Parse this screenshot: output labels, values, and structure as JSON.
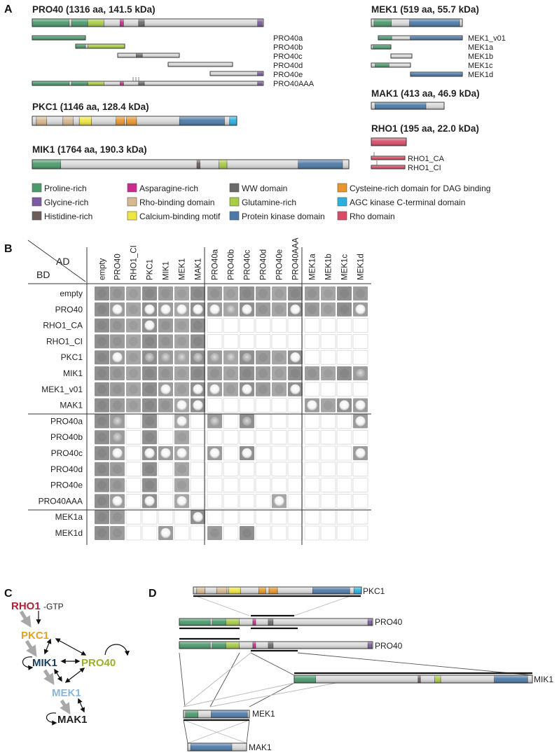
{
  "panels": {
    "a": "A",
    "b": "B",
    "c": "C",
    "d": "D"
  },
  "colors": {
    "proline": "#4a9a6c",
    "glycine": "#7e5aa0",
    "histidine": "#6e5c58",
    "asparagine": "#cc2a8c",
    "rho_binding": "#d8b890",
    "calcium": "#f0e640",
    "ww": "#6a6a6a",
    "glutamine": "#a8cc48",
    "kinase": "#4c7aa8",
    "cysteine": "#e8962c",
    "agc": "#2cb0e0",
    "rho": "#d84c68",
    "node_rho1": "#b0213a",
    "node_pkc1": "#e8a020",
    "node_mik1": "#1b3d5c",
    "node_pro40": "#9ab02a",
    "node_mek1": "#8ab6d8",
    "node_mak1": "#222222"
  },
  "panel_a": {
    "proteins": {
      "pro40": "PRO40 (1316 aa, 141.5 kDa)",
      "mek1": "MEK1 (519 aa, 55.7 kDa)",
      "mak1": "MAK1 (413 aa, 46.9 kDa)",
      "rho1": "RHO1 (195 aa, 22.0 kDa)",
      "pkc1": "PKC1 (1146 aa, 128.4 kDa)",
      "mik1": "MIK1 (1764 aa, 190.3 kDa)"
    },
    "pro40_fragments": [
      "PRO40a",
      "PRO40b",
      "PRO40c",
      "PRO40d",
      "PRO40e",
      "PRO40AAA"
    ],
    "mek1_fragments": [
      "MEK1_v01",
      "MEK1a",
      "MEK1b",
      "MEK1c",
      "MEK1d"
    ],
    "rho1_fragments": [
      "RHO1_CA",
      "RHO1_CI"
    ],
    "legend": [
      {
        "label": "Proline-rich",
        "color": "proline"
      },
      {
        "label": "Asparagine-rich",
        "color": "asparagine"
      },
      {
        "label": "WW domain",
        "color": "ww"
      },
      {
        "label": "Cysteine-rich domain for DAG binding",
        "color": "cysteine"
      },
      {
        "label": "Glycine-rich",
        "color": "glycine"
      },
      {
        "label": "Rho-binding domain",
        "color": "rho_binding"
      },
      {
        "label": "Glutamine-rich",
        "color": "glutamine"
      },
      {
        "label": "AGC kinase C-terminal domain",
        "color": "agc"
      },
      {
        "label": "Histidine-rich",
        "color": "histidine"
      },
      {
        "label": "Calcium-binding motif",
        "color": "calcium"
      },
      {
        "label": "Protein kinase domain",
        "color": "kinase"
      },
      {
        "label": "Rho domain",
        "color": "rho"
      }
    ]
  },
  "panel_b": {
    "ad_label": "AD",
    "bd_label": "BD",
    "columns": [
      "empty",
      "PRO40",
      "RHO1_CI",
      "PKC1",
      "MIK1",
      "MEK1",
      "MAK1",
      "PRO40a",
      "PRO40b",
      "PRO40c",
      "PRO40d",
      "PRO40e",
      "PRO40AAA",
      "MEK1a",
      "MEK1b",
      "MEK1c",
      "MEK1d"
    ],
    "rows": [
      "empty",
      "PRO40",
      "RHO1_CA",
      "RHO1_CI",
      "PKC1",
      "MIK1",
      "MEK1_v01",
      "MAK1",
      "PRO40a",
      "PRO40b",
      "PRO40c",
      "PRO40d",
      "PRO40e",
      "PRO40AAA",
      "MEK1a",
      "MEK1d"
    ],
    "grid_legend": "0 = not tested, 1 = no growth, 2 = weak, 3 = growth",
    "grid": [
      [
        1,
        1,
        1,
        1,
        1,
        1,
        1,
        1,
        1,
        1,
        1,
        1,
        1,
        1,
        1,
        1,
        1
      ],
      [
        1,
        3,
        1,
        3,
        3,
        3,
        3,
        3,
        2,
        3,
        1,
        1,
        3,
        1,
        1,
        1,
        3
      ],
      [
        1,
        1,
        1,
        3,
        1,
        1,
        1,
        0,
        0,
        0,
        0,
        0,
        0,
        0,
        0,
        0,
        0
      ],
      [
        1,
        1,
        1,
        1,
        1,
        1,
        1,
        0,
        0,
        0,
        0,
        0,
        0,
        0,
        0,
        0,
        0
      ],
      [
        1,
        3,
        1,
        2,
        2,
        2,
        2,
        2,
        2,
        2,
        1,
        1,
        3,
        0,
        0,
        0,
        0
      ],
      [
        1,
        1,
        1,
        1,
        1,
        1,
        1,
        1,
        1,
        1,
        1,
        1,
        1,
        1,
        1,
        1,
        2
      ],
      [
        1,
        1,
        1,
        1,
        3,
        1,
        3,
        3,
        1,
        3,
        1,
        1,
        3,
        0,
        0,
        0,
        0
      ],
      [
        1,
        1,
        1,
        1,
        1,
        3,
        3,
        0,
        0,
        0,
        0,
        0,
        0,
        3,
        1,
        3,
        3
      ],
      [
        1,
        2,
        0,
        1,
        0,
        3,
        0,
        2,
        0,
        2,
        0,
        0,
        0,
        0,
        0,
        0,
        3
      ],
      [
        1,
        2,
        0,
        1,
        0,
        1,
        0,
        0,
        0,
        0,
        0,
        0,
        0,
        0,
        0,
        0,
        0
      ],
      [
        1,
        3,
        0,
        3,
        3,
        3,
        0,
        3,
        0,
        3,
        0,
        0,
        0,
        0,
        0,
        0,
        3
      ],
      [
        1,
        1,
        0,
        1,
        0,
        1,
        0,
        0,
        0,
        0,
        0,
        0,
        0,
        0,
        0,
        0,
        0
      ],
      [
        1,
        1,
        0,
        1,
        0,
        1,
        0,
        0,
        0,
        0,
        0,
        0,
        0,
        0,
        0,
        0,
        0
      ],
      [
        1,
        3,
        0,
        3,
        0,
        3,
        0,
        0,
        0,
        0,
        0,
        3,
        0,
        0,
        0,
        0,
        0
      ],
      [
        1,
        1,
        0,
        0,
        0,
        0,
        3,
        0,
        0,
        0,
        0,
        0,
        0,
        0,
        0,
        0,
        0
      ],
      [
        1,
        1,
        0,
        0,
        3,
        0,
        0,
        1,
        0,
        1,
        0,
        0,
        0,
        0,
        0,
        0,
        0
      ]
    ]
  },
  "panel_c": {
    "nodes": {
      "rho1": "RHO1",
      "gtp": "-GTP",
      "pkc1": "PKC1",
      "mik1": "MIK1",
      "pro40": "PRO40",
      "mek1": "MEK1",
      "mak1": "MAK1"
    }
  },
  "panel_d": {
    "labels": {
      "pkc1": "PKC1",
      "pro40_top": "PRO40",
      "pro40_bottom": "PRO40",
      "mik1": "MIK1",
      "mek1": "MEK1",
      "mak1": "MAK1"
    }
  }
}
